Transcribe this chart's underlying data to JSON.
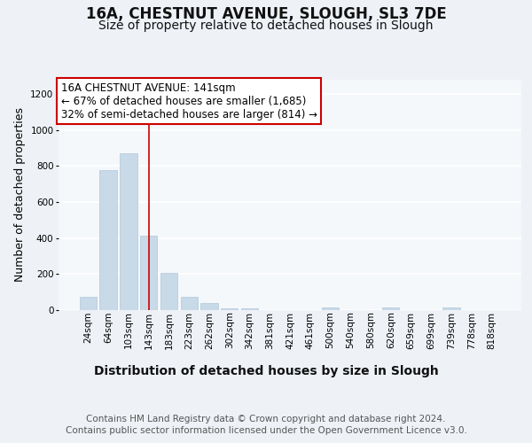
{
  "title": "16A, CHESTNUT AVENUE, SLOUGH, SL3 7DE",
  "subtitle": "Size of property relative to detached houses in Slough",
  "xlabel": "Distribution of detached houses by size in Slough",
  "ylabel": "Number of detached properties",
  "footer_line1": "Contains HM Land Registry data © Crown copyright and database right 2024.",
  "footer_line2": "Contains public sector information licensed under the Open Government Licence v3.0.",
  "bar_labels": [
    "24sqm",
    "64sqm",
    "103sqm",
    "143sqm",
    "183sqm",
    "223sqm",
    "262sqm",
    "302sqm",
    "342sqm",
    "381sqm",
    "421sqm",
    "461sqm",
    "500sqm",
    "540sqm",
    "580sqm",
    "620sqm",
    "659sqm",
    "699sqm",
    "739sqm",
    "778sqm",
    "818sqm"
  ],
  "bar_values": [
    75,
    780,
    870,
    415,
    205,
    75,
    40,
    10,
    10,
    0,
    0,
    0,
    15,
    0,
    0,
    15,
    0,
    0,
    15,
    0,
    0
  ],
  "bar_color": "#c8d9e8",
  "bar_edge_color": "#b0c8d8",
  "red_line_x": 3.0,
  "annotation_line1": "16A CHESTNUT AVENUE: 141sqm",
  "annotation_line2": "← 67% of detached houses are smaller (1,685)",
  "annotation_line3": "32% of semi-detached houses are larger (814) →",
  "annotation_box_color": "#ffffff",
  "annotation_box_edge_color": "#cc0000",
  "ylim": [
    0,
    1280
  ],
  "yticks": [
    0,
    200,
    400,
    600,
    800,
    1000,
    1200
  ],
  "bg_color": "#eef2f7",
  "plot_bg_color": "#f5f8fb",
  "grid_color": "#ffffff",
  "title_fontsize": 12,
  "subtitle_fontsize": 10,
  "xlabel_fontsize": 10,
  "ylabel_fontsize": 9,
  "tick_fontsize": 7.5,
  "annotation_fontsize": 8.5,
  "footer_fontsize": 7.5
}
